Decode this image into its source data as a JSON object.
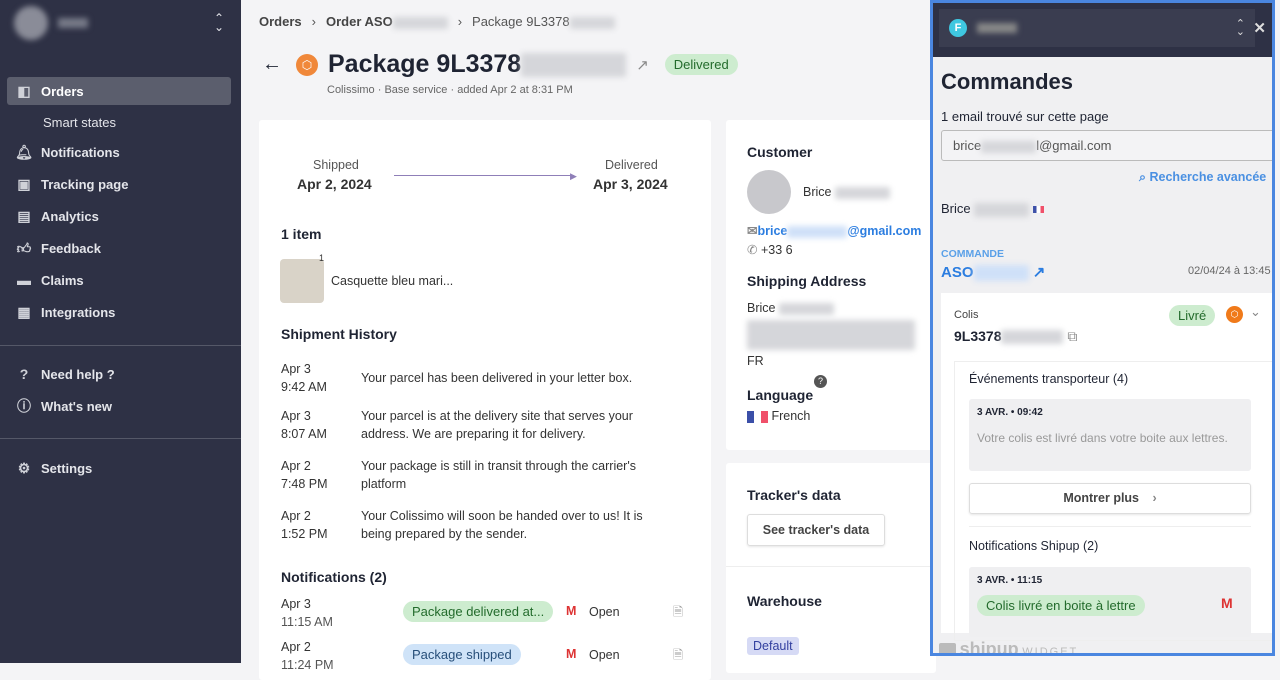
{
  "sidebar": {
    "items": [
      {
        "label": "Orders",
        "icon": "box-icon"
      },
      {
        "label": "Smart states"
      },
      {
        "label": "Notifications",
        "icon": "bell-icon"
      },
      {
        "label": "Tracking page",
        "icon": "screen-cursor-icon"
      },
      {
        "label": "Analytics",
        "icon": "bar-chart-icon"
      },
      {
        "label": "Feedback",
        "icon": "thumbs-up-icon"
      },
      {
        "label": "Claims",
        "icon": "archive-icon"
      },
      {
        "label": "Integrations",
        "icon": "grid-plus-icon"
      },
      {
        "label": "Need help ?",
        "icon": "help-icon"
      },
      {
        "label": "What's new",
        "icon": "info-icon"
      },
      {
        "label": "Settings",
        "icon": "gear-icon"
      }
    ]
  },
  "breadcrumb": {
    "orders": "Orders",
    "order": "Order ASO",
    "package": "Package 9L3378"
  },
  "header": {
    "title": "Package 9L3378",
    "status": "Delivered",
    "subtitle": "Colissimo · Base service · added Apr 2 at 8:31 PM"
  },
  "timeline": {
    "shipped_label": "Shipped",
    "shipped_date": "Apr 2, 2024",
    "delivered_label": "Delivered",
    "delivered_date": "Apr 3, 2024"
  },
  "items": {
    "title": "1 item",
    "qty": "1",
    "name": "Casquette bleu mari..."
  },
  "history": {
    "title": "Shipment History",
    "events": [
      {
        "date": "Apr 3",
        "time": "9:42 AM",
        "text": "Your parcel has been delivered in your letter box."
      },
      {
        "date": "Apr 3",
        "time": "8:07 AM",
        "text": "Your parcel is at the delivery site that serves your address. We are preparing it for delivery."
      },
      {
        "date": "Apr 2",
        "time": "7:48 PM",
        "text": "Your package is still in transit through the carrier's platform"
      },
      {
        "date": "Apr 2",
        "time": "1:52 PM",
        "text": "Your Colissimo will soon be handed over to us! It is being prepared by the sender."
      }
    ]
  },
  "notifications": {
    "title": "Notifications (2)",
    "rows": [
      {
        "date": "Apr 3",
        "time": "11:15 AM",
        "label": "Package delivered at...",
        "status": "Open",
        "color": "green"
      },
      {
        "date": "Apr 2",
        "time": "11:24 PM",
        "label": "Package shipped",
        "status": "Open",
        "color": "blue"
      }
    ]
  },
  "customer": {
    "title": "Customer",
    "name": "Brice",
    "email_start": "brice",
    "email_end": "@gmail.com",
    "phone": "+33 6",
    "shipping_title": "Shipping Address",
    "ship_name": "Brice",
    "country": "FR",
    "language_title": "Language",
    "language": "French"
  },
  "tracker": {
    "title": "Tracker's data",
    "button": "See tracker's data"
  },
  "warehouse": {
    "title": "Warehouse",
    "tag": "Default"
  },
  "widget": {
    "avatar_letter": "F",
    "title": "Commandes",
    "email_found": "1 email trouvé sur cette page",
    "email_start": "brice",
    "email_end": "l@gmail.com",
    "advanced_search": "Recherche avancée",
    "customer_name": "Brice",
    "order_label": "COMMANDE",
    "order_id": "ASO",
    "order_date": "02/04/24 à 13:45",
    "parcel_label": "Colis",
    "parcel_status": "Livré",
    "tracking": "9L3378",
    "events_title": "Événements transporteur (4)",
    "event_date": "3 AVR. • 09:42",
    "event_text": "Votre colis est livré dans votre boite aux lettres.",
    "show_more": "Montrer plus",
    "notif_title": "Notifications Shipup (2)",
    "notif_date": "3 AVR. • 11:15",
    "notif_label": "Colis livré en boite à lettre",
    "footer_brand": "shipup",
    "footer_widget": "WIDGET"
  },
  "colors": {
    "sidebar": "#2e3145",
    "accent": "#4a86e0",
    "delivered": "#cdeccf",
    "link": "#2b7de0",
    "carrier": "#f0883a"
  }
}
